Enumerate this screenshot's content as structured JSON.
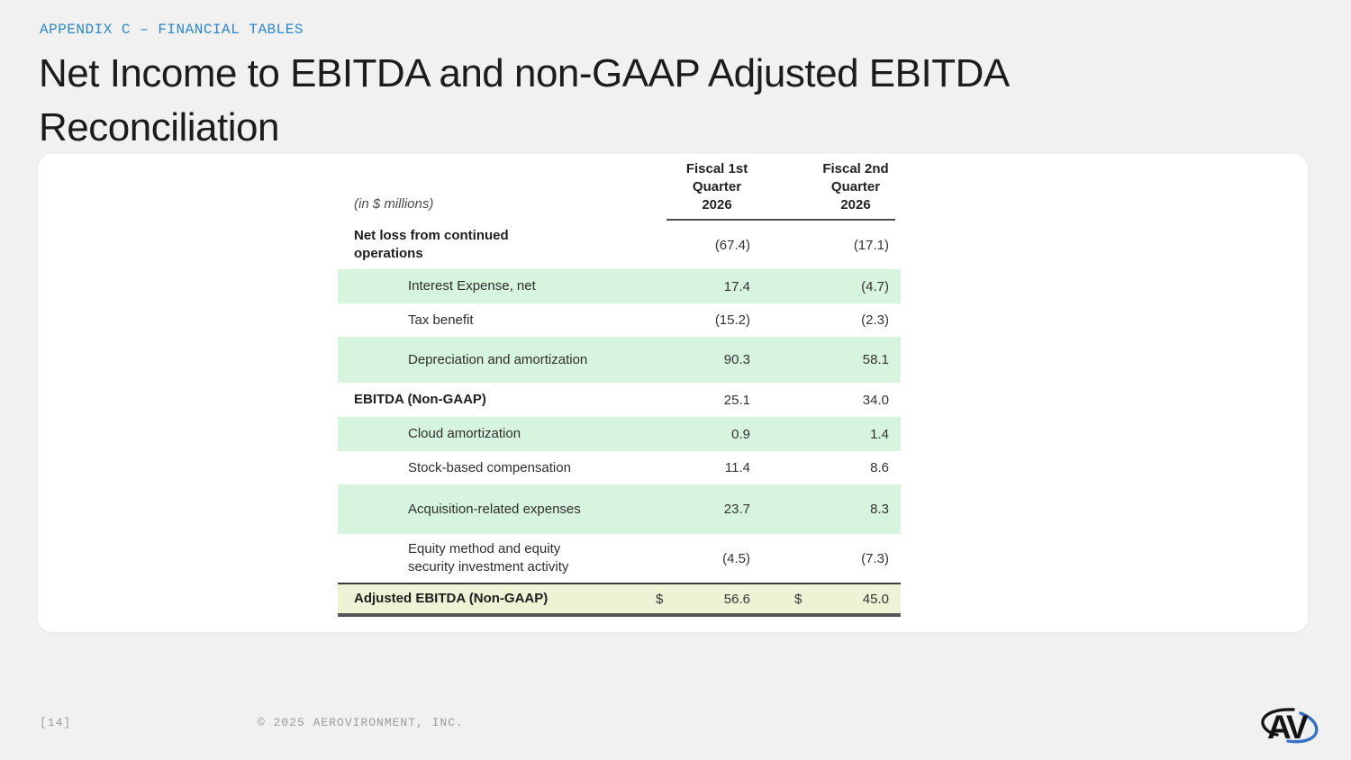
{
  "slide": {
    "eyebrow": "APPENDIX C – FINANCIAL TABLES",
    "title": "Net Income to EBITDA and non-GAAP Adjusted EBITDA Reconciliation",
    "page_number": "[14]",
    "copyright": "© 2025 AEROVIRONMENT, INC.",
    "logo_text": "AV"
  },
  "table": {
    "units_note": "(in $ millions)",
    "currency_symbol": "$",
    "columns": [
      {
        "label": "Fiscal 1st\nQuarter\n2026"
      },
      {
        "label": "Fiscal 2nd\nQuarter\n2026"
      }
    ],
    "rows": [
      {
        "label": "Net loss from continued operations",
        "q1": "(67.4)",
        "q2": "(17.1)",
        "bold": true,
        "indent": false,
        "highlight": "none",
        "currency": false
      },
      {
        "label": "Interest Expense, net",
        "q1": "17.4",
        "q2": "(4.7)",
        "bold": false,
        "indent": true,
        "highlight": "green",
        "currency": false
      },
      {
        "label": "Tax benefit",
        "q1": "(15.2)",
        "q2": "(2.3)",
        "bold": false,
        "indent": true,
        "highlight": "none",
        "currency": false
      },
      {
        "label": "Depreciation and amortization",
        "q1": "90.3",
        "q2": "58.1",
        "bold": false,
        "indent": true,
        "highlight": "green",
        "currency": false
      },
      {
        "label": "EBITDA (Non-GAAP)",
        "q1": "25.1",
        "q2": "34.0",
        "bold": true,
        "indent": false,
        "highlight": "none",
        "currency": false
      },
      {
        "label": "Cloud amortization",
        "q1": "0.9",
        "q2": "1.4",
        "bold": false,
        "indent": true,
        "highlight": "green",
        "currency": false
      },
      {
        "label": "Stock-based compensation",
        "q1": "11.4",
        "q2": "8.6",
        "bold": false,
        "indent": true,
        "highlight": "none",
        "currency": false
      },
      {
        "label": "Acquisition-related expenses",
        "q1": "23.7",
        "q2": "8.3",
        "bold": false,
        "indent": true,
        "highlight": "green",
        "currency": false
      },
      {
        "label": "Equity method and equity security investment activity",
        "q1": "(4.5)",
        "q2": "(7.3)",
        "bold": false,
        "indent": true,
        "highlight": "none",
        "currency": false
      },
      {
        "label": "Adjusted EBITDA (Non-GAAP)",
        "q1": "56.6",
        "q2": "45.0",
        "bold": true,
        "indent": false,
        "highlight": "yellow",
        "currency": true
      }
    ]
  },
  "colors": {
    "accent_blue": "#2b86d0",
    "highlight_green": "#d6f4de",
    "highlight_yellow_green": "#eef3d6",
    "background": "#f1f1f1",
    "card": "#ffffff",
    "footer_gray": "#9b9b9b",
    "logo_blue": "#3572c6"
  }
}
